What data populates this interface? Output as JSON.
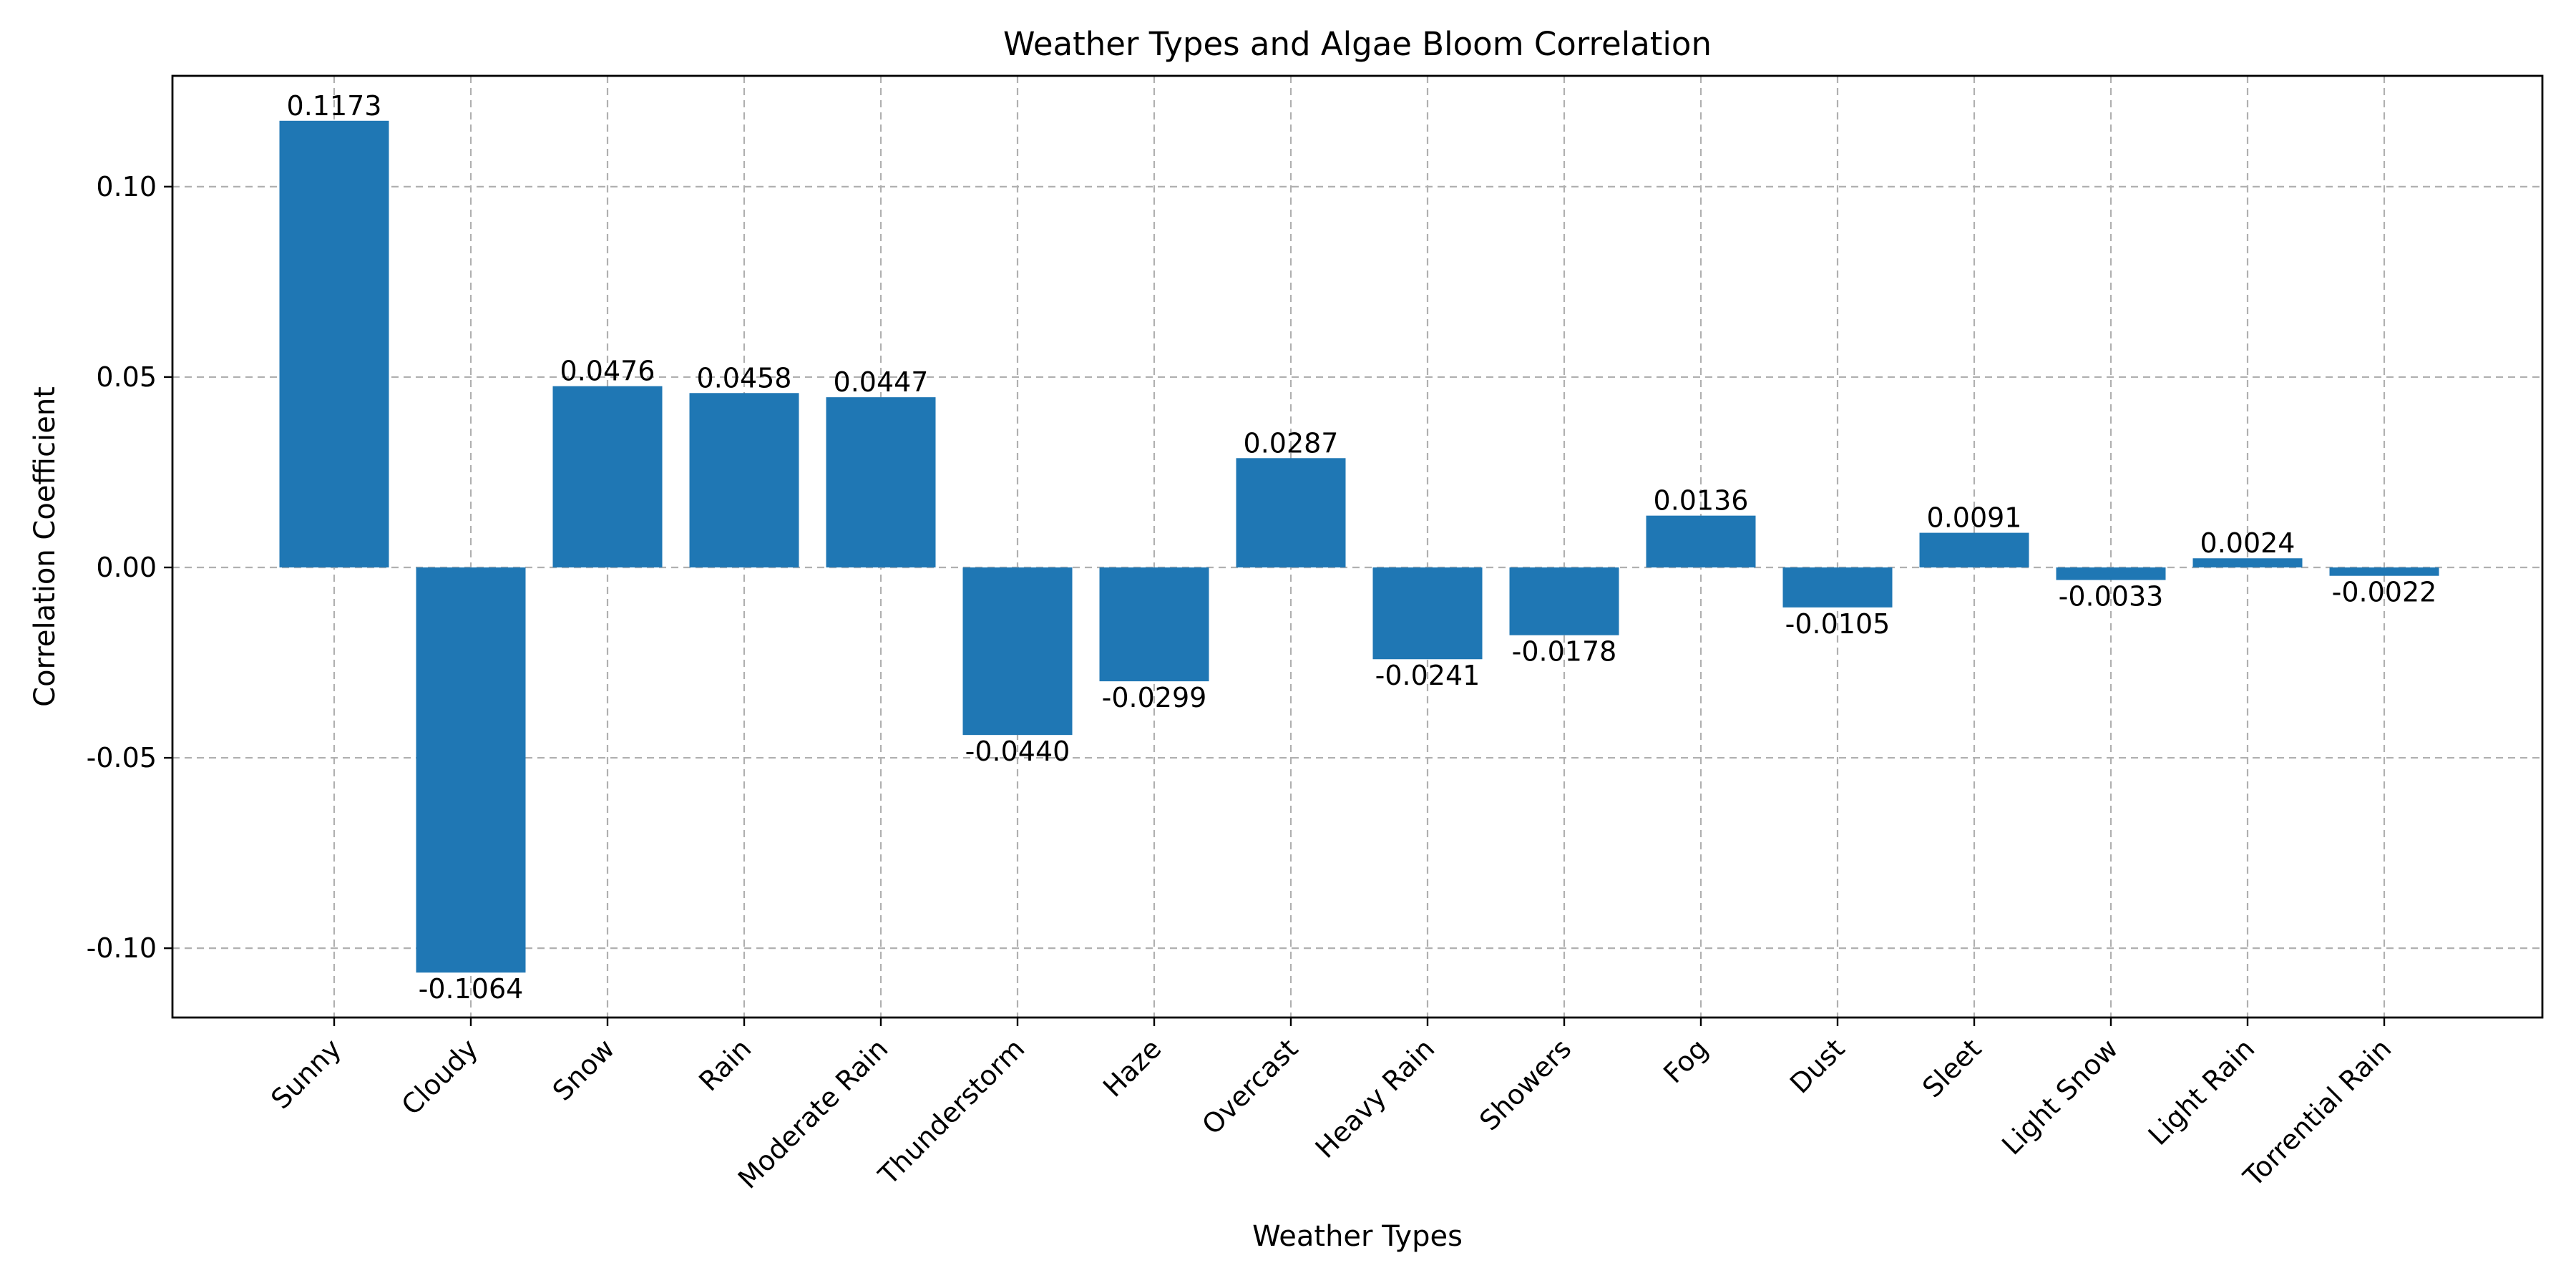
{
  "chart_data": {
    "type": "bar",
    "title": "Weather Types and Algae Bloom Correlation",
    "xlabel": "Weather Types",
    "ylabel": "Correlation Coefficient",
    "categories": [
      "Sunny",
      "Cloudy",
      "Snow",
      "Rain",
      "Moderate Rain",
      "Thunderstorm",
      "Haze",
      "Overcast",
      "Heavy Rain",
      "Showers",
      "Fog",
      "Dust",
      "Sleet",
      "Light Snow",
      "Light Rain",
      "Torrential Rain"
    ],
    "values": [
      0.1173,
      -0.1064,
      0.0476,
      0.0458,
      0.0447,
      -0.044,
      -0.0299,
      0.0287,
      -0.0241,
      -0.0178,
      0.0136,
      -0.0105,
      0.0091,
      -0.0033,
      0.0024,
      -0.0022
    ],
    "value_labels": [
      "0.1173",
      "-0.1064",
      "0.0476",
      "0.0458",
      "0.0447",
      "-0.0440",
      "-0.0299",
      "0.0287",
      "-0.0241",
      "-0.0178",
      "0.0136",
      "-0.0105",
      "0.0091",
      "-0.0033",
      "0.0024",
      "-0.0022"
    ],
    "yticks": [
      -0.1,
      -0.05,
      0.0,
      0.05,
      0.1
    ],
    "ytick_labels": [
      "-0.10",
      "-0.05",
      "0.00",
      "0.05",
      "0.10"
    ],
    "ylim": [
      -0.1182,
      0.1291
    ],
    "grid": true,
    "bar_color": "#1f77b4",
    "grid_color": "#b0b0b0"
  }
}
